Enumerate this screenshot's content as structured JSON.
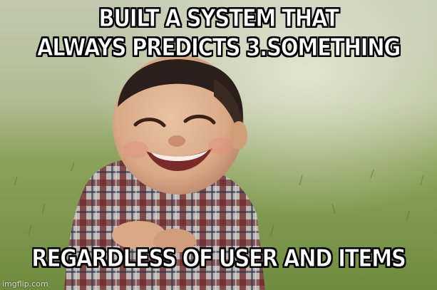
{
  "meme": {
    "top_text": [
      "BUILT A SYSTEM THAT",
      "ALWAYS PREDICTS 3.SOMETHING"
    ],
    "bottom_text": "REGARDLESS OF USER AND ITEMS",
    "watermark": "imgflip.com"
  },
  "colors": {
    "caption_fill": "#ffffff",
    "caption_outline": "#000000",
    "grass": "#7e9a4e",
    "background_blur": "#c9cfb2"
  }
}
